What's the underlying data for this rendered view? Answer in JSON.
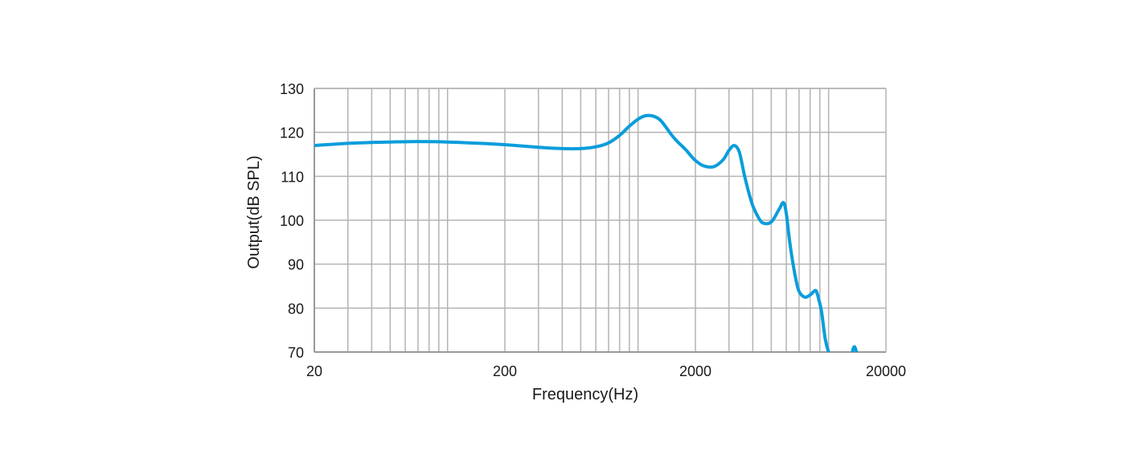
{
  "chart_data": {
    "type": "line",
    "title": "",
    "xlabel": "Frequency(Hz)",
    "ylabel": "Output(dB SPL)",
    "x_scale": "log",
    "xlim": [
      20,
      20000
    ],
    "ylim": [
      70,
      130
    ],
    "x_ticks": [
      20,
      200,
      2000,
      20000
    ],
    "x_tick_labels": [
      "20",
      "200",
      "2000",
      "20000"
    ],
    "y_ticks": [
      70,
      80,
      90,
      100,
      110,
      120,
      130
    ],
    "y_tick_labels": [
      "70",
      "80",
      "90",
      "100",
      "110",
      "120",
      "130"
    ],
    "grid": true,
    "grid_color": "#b3b3b3",
    "axis_color": "#999999",
    "line_color": "#0a9ddb",
    "series": [
      {
        "x": [
          20,
          30,
          50,
          70,
          100,
          150,
          200,
          300,
          400,
          500,
          600,
          700,
          800,
          900,
          1000,
          1100,
          1200,
          1300,
          1400,
          1500,
          1600,
          1700,
          1800,
          1900,
          2000,
          2200,
          2500,
          2800,
          3000,
          3200,
          3400,
          3600,
          3800,
          4000,
          4200,
          4500,
          5000,
          5500,
          5800,
          6000,
          6200,
          6400,
          6700,
          7000,
          7500,
          8000,
          8500,
          8700,
          8900,
          9200,
          9600,
          10000,
          10500,
          11000,
          13000,
          13400,
          13700,
          14000
        ],
        "y": [
          117.0,
          117.5,
          117.8,
          117.9,
          117.8,
          117.5,
          117.2,
          116.6,
          116.3,
          116.3,
          116.7,
          117.6,
          119.3,
          121.4,
          123.0,
          123.8,
          123.7,
          122.9,
          121.2,
          119.4,
          118.0,
          116.9,
          115.8,
          114.6,
          113.6,
          112.4,
          112.2,
          113.8,
          115.9,
          117.0,
          115.5,
          110.6,
          106.5,
          103.3,
          101.3,
          99.4,
          99.6,
          102.5,
          104.0,
          101.5,
          96.3,
          92.0,
          87.0,
          83.8,
          82.5,
          83.0,
          84.0,
          83.4,
          81.8,
          79.0,
          73.0,
          70.0,
          68.0,
          68.0,
          68.0,
          70.5,
          71.2,
          70.0
        ]
      }
    ]
  }
}
